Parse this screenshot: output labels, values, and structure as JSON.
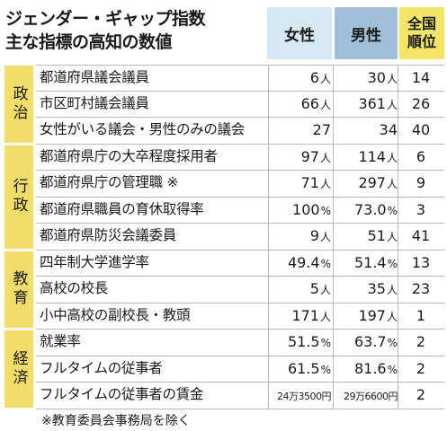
{
  "title": {
    "line1": "ジェンダー・ギャップ指数",
    "line2": "主な指標の高知の数値"
  },
  "headers": {
    "female": "女性",
    "male": "男性",
    "rank_line1": "全国",
    "rank_line2": "順位"
  },
  "categories": [
    {
      "name": "政治",
      "rows": [
        {
          "label": "都道府県議会議員",
          "female": "6",
          "female_unit": "人",
          "male": "30",
          "male_unit": "人",
          "rank": "14"
        },
        {
          "label": "市区町村議会議員",
          "female": "66",
          "female_unit": "人",
          "male": "361",
          "male_unit": "人",
          "rank": "26"
        },
        {
          "label": "女性がいる議会・男性のみの議会",
          "female": "27",
          "female_unit": "",
          "male": "34",
          "male_unit": "",
          "rank": "40"
        }
      ]
    },
    {
      "name": "行政",
      "rows": [
        {
          "label": "都道府県庁の大卒程度採用者",
          "female": "97",
          "female_unit": "人",
          "male": "114",
          "male_unit": "人",
          "rank": "6"
        },
        {
          "label": "都道府県庁の管理職 ※",
          "female": "71",
          "female_unit": "人",
          "male": "297",
          "male_unit": "人",
          "rank": "9"
        },
        {
          "label": "都道府県職員の育休取得率",
          "female": "100",
          "female_unit": "%",
          "male": "73.0",
          "male_unit": "%",
          "rank": "3"
        },
        {
          "label": "都道府県防災会議委員",
          "female": "9",
          "female_unit": "人",
          "male": "51",
          "male_unit": "人",
          "rank": "41"
        }
      ]
    },
    {
      "name": "教育",
      "rows": [
        {
          "label": "四年制大学進学率",
          "female": "49.4",
          "female_unit": "%",
          "male": "51.4",
          "male_unit": "%",
          "rank": "13"
        },
        {
          "label": "高校の校長",
          "female": "5",
          "female_unit": "人",
          "male": "35",
          "male_unit": "人",
          "rank": "23"
        },
        {
          "label": "小中高校の副校長・教頭",
          "female": "171",
          "female_unit": "人",
          "male": "197",
          "male_unit": "人",
          "rank": "1"
        }
      ]
    },
    {
      "name": "経済",
      "rows": [
        {
          "label": "就業率",
          "female": "51.5",
          "female_unit": "%",
          "male": "63.7",
          "male_unit": "%",
          "rank": "2"
        },
        {
          "label": "フルタイムの従事者",
          "female": "61.5",
          "female_unit": "%",
          "male": "81.6",
          "male_unit": "%",
          "rank": "2"
        },
        {
          "label": "フルタイムの従事者の賃金",
          "female": "24万3500円",
          "female_unit": "",
          "male": "29万6600円",
          "male_unit": "",
          "rank": "2"
        }
      ]
    }
  ],
  "footnote": "※教育委員会事務局を除く",
  "colors": {
    "female_header": "#d6e8f4",
    "male_header": "#9fc0d8",
    "rank_header": "#f3e46a",
    "category_band": "#f2dc6a"
  }
}
